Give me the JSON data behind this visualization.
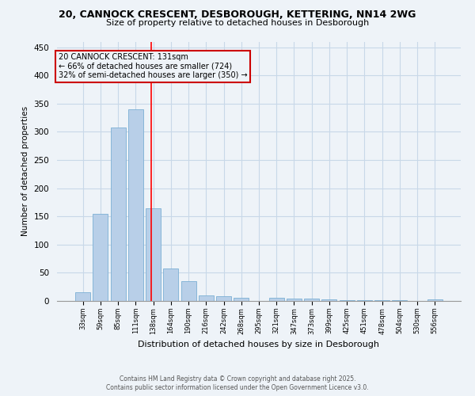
{
  "title": "20, CANNOCK CRESCENT, DESBOROUGH, KETTERING, NN14 2WG",
  "subtitle": "Size of property relative to detached houses in Desborough",
  "xlabel": "Distribution of detached houses by size in Desborough",
  "ylabel": "Number of detached properties",
  "categories": [
    "33sqm",
    "59sqm",
    "85sqm",
    "111sqm",
    "138sqm",
    "164sqm",
    "190sqm",
    "216sqm",
    "242sqm",
    "268sqm",
    "295sqm",
    "321sqm",
    "347sqm",
    "373sqm",
    "399sqm",
    "425sqm",
    "451sqm",
    "478sqm",
    "504sqm",
    "530sqm",
    "556sqm"
  ],
  "values": [
    15,
    155,
    308,
    340,
    165,
    57,
    35,
    10,
    8,
    5,
    0,
    5,
    4,
    4,
    3,
    2,
    2,
    1,
    1,
    0,
    3
  ],
  "bar_color": "#b8cfe8",
  "bar_edge_color": "#7bafd4",
  "grid_color": "#c8d8e8",
  "background_color": "#eef3f8",
  "property_line_x": 3.87,
  "annotation_line1": "20 CANNOCK CRESCENT: 131sqm",
  "annotation_line2": "← 66% of detached houses are smaller (724)",
  "annotation_line3": "32% of semi-detached houses are larger (350) →",
  "annotation_box_color": "#cc0000",
  "footer_line1": "Contains HM Land Registry data © Crown copyright and database right 2025.",
  "footer_line2": "Contains public sector information licensed under the Open Government Licence v3.0.",
  "ylim": [
    0,
    460
  ],
  "yticks": [
    0,
    50,
    100,
    150,
    200,
    250,
    300,
    350,
    400,
    450
  ]
}
